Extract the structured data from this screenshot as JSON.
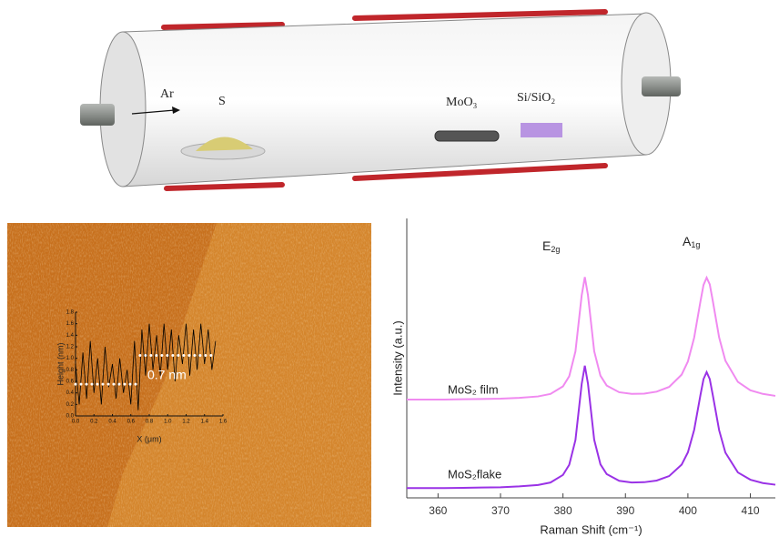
{
  "diagram": {
    "labels": {
      "gas": "Ar",
      "sulfur": "S",
      "precursor": "MoO₃",
      "substrate": "Si/SiO₂"
    }
  },
  "chart_data": [
    {
      "type": "line",
      "xlabel": "X (μm)",
      "ylabel": "Height (nm)",
      "annotation": "0.7 nm",
      "color": "#000000",
      "x": [
        0,
        0.04,
        0.08,
        0.12,
        0.16,
        0.2,
        0.24,
        0.28,
        0.32,
        0.36,
        0.4,
        0.44,
        0.48,
        0.52,
        0.56,
        0.6,
        0.64,
        0.68,
        0.72,
        0.76,
        0.8,
        0.84,
        0.88,
        0.92,
        0.96,
        1.0,
        1.04,
        1.08,
        1.12,
        1.16,
        1.2,
        1.24,
        1.28,
        1.32,
        1.36,
        1.4,
        1.44,
        1.48,
        1.52
      ],
      "values": [
        0.9,
        0.2,
        1.1,
        0.3,
        1.3,
        0.4,
        1.0,
        0.2,
        1.2,
        0.5,
        0.9,
        0.3,
        1.0,
        0.4,
        0.8,
        0.2,
        1.3,
        0.1,
        1.5,
        0.7,
        1.6,
        0.8,
        1.4,
        0.7,
        1.6,
        0.8,
        1.5,
        0.6,
        1.4,
        0.9,
        1.6,
        0.7,
        1.5,
        0.8,
        1.6,
        0.9,
        1.5,
        0.8,
        1.3
      ],
      "reference_lines": [
        {
          "y": 0.55,
          "x": [
            0,
            0.7
          ]
        },
        {
          "y": 1.05,
          "x": [
            0.7,
            1.5
          ]
        }
      ],
      "reference_color": "#ffffff",
      "xlim": [
        0,
        1.6
      ],
      "ylim": [
        0,
        1.8
      ],
      "xticks": [
        {
          "value": 0,
          "label": "0.0"
        },
        0.2,
        0.4,
        0.6,
        0.8,
        {
          "value": 1,
          "label": "1.0"
        },
        1.2,
        1.4,
        1.6
      ],
      "yticks": [
        {
          "value": 0,
          "label": "0.0"
        },
        0.2,
        0.4,
        0.6,
        0.8,
        {
          "value": 1,
          "label": "1.0"
        },
        1.2,
        1.4,
        1.6,
        1.8
      ]
    },
    {
      "type": "line",
      "xlabel": "Raman Shift (cm⁻¹)",
      "ylabel": "Intensity (a.u.)",
      "x": [
        355,
        358,
        361,
        364,
        367,
        370,
        373,
        376,
        378,
        380,
        381,
        382,
        383,
        383.5,
        384,
        385,
        386,
        387,
        389,
        391,
        393,
        395,
        397,
        399,
        400,
        401,
        402,
        402.5,
        403,
        403.5,
        404,
        405,
        406,
        408,
        410,
        412,
        414
      ],
      "series": [
        {
          "name": "MoS₂ film",
          "color": "#f08af0",
          "values": [
            35.2,
            35.2,
            35.2,
            35.3,
            35.4,
            35.5,
            35.8,
            36.3,
            37.2,
            39.9,
            43.5,
            52.4,
            72.5,
            79.0,
            72.6,
            52.5,
            43.7,
            40.2,
            37.8,
            37.2,
            37.3,
            38.0,
            39.7,
            44.1,
            48.8,
            57.3,
            70.2,
            76.2,
            78.8,
            76.4,
            70.3,
            57.4,
            49.1,
            41.5,
            38.5,
            37.2,
            36.5
          ]
        },
        {
          "name": "MoS₂flake",
          "color": "#9a32e6",
          "values": [
            3.5,
            3.5,
            3.5,
            3.6,
            3.7,
            3.8,
            4.1,
            4.6,
            5.5,
            8.2,
            11.8,
            20.7,
            40.8,
            47.3,
            40.9,
            20.8,
            12.0,
            8.5,
            6.1,
            5.5,
            5.6,
            6.2,
            7.8,
            11.9,
            16.3,
            24.3,
            36.7,
            42.5,
            45.0,
            42.5,
            36.6,
            24.2,
            16.2,
            9.1,
            6.5,
            5.3,
            4.7
          ]
        }
      ],
      "peak_labels": [
        {
          "base": "E",
          "sub": "2g"
        },
        {
          "base": "A",
          "sub": "1g"
        }
      ],
      "xlim": [
        355,
        414
      ],
      "ylim": [
        0,
        100
      ],
      "xticks": [
        360,
        370,
        380,
        390,
        400,
        410
      ]
    }
  ]
}
